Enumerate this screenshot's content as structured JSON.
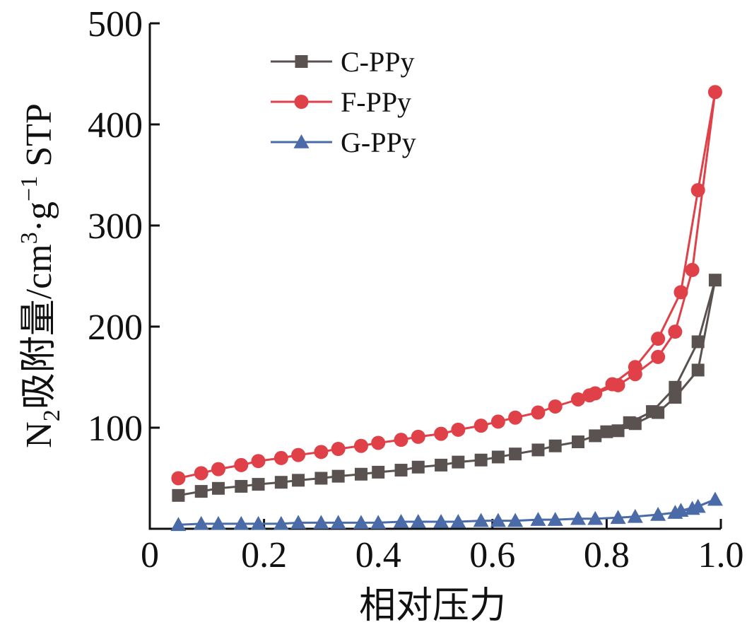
{
  "chart_data": {
    "type": "line",
    "xlabel": "相对压力",
    "ylabel": {
      "prefix": "N",
      "prefix_sub": "2",
      "main": "吸附量/cm",
      "sup1": "3",
      "mid": "·g",
      "sup2": "−1",
      "suffix": " STP"
    },
    "xlim": [
      0,
      1.0
    ],
    "ylim": [
      0,
      500
    ],
    "x_ticks": [
      {
        "value": 0,
        "label": "0"
      },
      {
        "value": 0.2,
        "label": "0.2"
      },
      {
        "value": 0.4,
        "label": "0.4"
      },
      {
        "value": 0.6,
        "label": "0.6"
      },
      {
        "value": 0.8,
        "label": "0.8"
      },
      {
        "value": 1.0,
        "label": "1.0"
      }
    ],
    "y_ticks": [
      {
        "value": 100,
        "label": "100"
      },
      {
        "value": 200,
        "label": "200"
      },
      {
        "value": 300,
        "label": "300"
      },
      {
        "value": 400,
        "label": "400"
      },
      {
        "value": 500,
        "label": "500"
      }
    ],
    "grid": false,
    "legend_position": "top-left",
    "series": [
      {
        "name": "C-PPy",
        "color": "#5a5250",
        "marker": "square",
        "x": [
          0.05,
          0.09,
          0.12,
          0.16,
          0.19,
          0.23,
          0.26,
          0.3,
          0.33,
          0.37,
          0.4,
          0.44,
          0.47,
          0.51,
          0.54,
          0.58,
          0.61,
          0.64,
          0.68,
          0.71,
          0.75,
          0.78,
          0.82,
          0.85,
          0.89,
          0.92,
          0.96,
          0.99,
          0.96,
          0.92,
          0.88,
          0.84,
          0.8
        ],
        "y": [
          33,
          37,
          40,
          42,
          44,
          46,
          48,
          50,
          52,
          54,
          56,
          58,
          61,
          63,
          66,
          68,
          71,
          74,
          78,
          82,
          86,
          92,
          97,
          104,
          115,
          130,
          157,
          246,
          185,
          140,
          116,
          105,
          96
        ]
      },
      {
        "name": "F-PPy",
        "color": "#e04048",
        "marker": "circle",
        "x": [
          0.05,
          0.09,
          0.12,
          0.16,
          0.19,
          0.23,
          0.26,
          0.3,
          0.33,
          0.37,
          0.4,
          0.44,
          0.47,
          0.51,
          0.54,
          0.58,
          0.61,
          0.64,
          0.68,
          0.71,
          0.75,
          0.78,
          0.82,
          0.85,
          0.89,
          0.92,
          0.95,
          0.99,
          0.96,
          0.93,
          0.89,
          0.85,
          0.81,
          0.77
        ],
        "y": [
          50,
          55,
          59,
          63,
          67,
          70,
          73,
          76,
          79,
          82,
          85,
          88,
          91,
          94,
          98,
          102,
          106,
          110,
          115,
          121,
          128,
          134,
          142,
          153,
          170,
          195,
          256,
          432,
          335,
          234,
          188,
          160,
          143,
          132
        ]
      },
      {
        "name": "G-PPy",
        "color": "#4a6aa8",
        "marker": "triangle",
        "x": [
          0.05,
          0.09,
          0.12,
          0.16,
          0.19,
          0.23,
          0.26,
          0.3,
          0.33,
          0.37,
          0.4,
          0.44,
          0.47,
          0.51,
          0.54,
          0.58,
          0.61,
          0.64,
          0.68,
          0.71,
          0.75,
          0.78,
          0.82,
          0.85,
          0.89,
          0.92,
          0.95,
          0.99,
          0.96,
          0.93
        ],
        "y": [
          4,
          5,
          5,
          5,
          5,
          5,
          6,
          6,
          6,
          6,
          6,
          7,
          7,
          7,
          7,
          8,
          8,
          8,
          9,
          9,
          10,
          10,
          11,
          12,
          14,
          16,
          20,
          29,
          22,
          18
        ]
      }
    ]
  }
}
